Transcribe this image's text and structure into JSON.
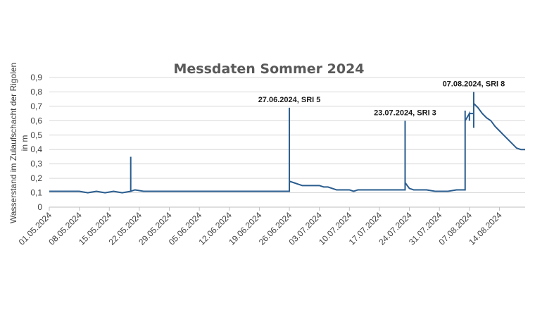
{
  "chart_data": {
    "type": "line",
    "title": "Messdaten Sommer 2024",
    "ylabel_line1": "Wasserstand im Zulaufschacht der Rigolen",
    "ylabel_line2": "in m",
    "ylim": [
      0,
      0.9
    ],
    "yticks": [
      "0",
      "0,1",
      "0,2",
      "0,3",
      "0,4",
      "0,5",
      "0,6",
      "0,7",
      "0,8",
      "0,9"
    ],
    "ytick_values": [
      0,
      0.1,
      0.2,
      0.3,
      0.4,
      0.5,
      0.6,
      0.7,
      0.8,
      0.9
    ],
    "xlim": [
      "2024-05-01",
      "2024-08-20"
    ],
    "xtick_labels": [
      "01.05.2024",
      "08.05.2024",
      "15.05.2024",
      "22.05.2024",
      "29.05.2024",
      "05.06.2024",
      "12.06.2024",
      "19.06.2024",
      "26.06.2024",
      "03.07.2024",
      "10.07.2024",
      "17.07.2024",
      "24.07.2024",
      "31.07.2024",
      "07.08.2024",
      "14.08.2024"
    ],
    "xtick_dates": [
      "2024-05-01",
      "2024-05-08",
      "2024-05-15",
      "2024-05-22",
      "2024-05-29",
      "2024-06-05",
      "2024-06-12",
      "2024-06-19",
      "2024-06-26",
      "2024-07-03",
      "2024-07-10",
      "2024-07-17",
      "2024-07-24",
      "2024-07-31",
      "2024-08-07",
      "2024-08-14"
    ],
    "grid": true,
    "series": [
      {
        "color": "#2a5d8f",
        "x": [
          "2024-05-01",
          "2024-05-08",
          "2024-05-10",
          "2024-05-12",
          "2024-05-14",
          "2024-05-16",
          "2024-05-18",
          "2024-05-20",
          "2024-05-20",
          "2024-05-20",
          "2024-05-20",
          "2024-05-21",
          "2024-05-23",
          "2024-05-25",
          "2024-06-26",
          "2024-06-26",
          "2024-06-26",
          "2024-06-26",
          "2024-06-27",
          "2024-06-28",
          "2024-06-29",
          "2024-06-30",
          "2024-07-03",
          "2024-07-04",
          "2024-07-05",
          "2024-07-06",
          "2024-07-07",
          "2024-07-10",
          "2024-07-11",
          "2024-07-12",
          "2024-07-23",
          "2024-07-23",
          "2024-07-23",
          "2024-07-23",
          "2024-07-24",
          "2024-07-25",
          "2024-07-28",
          "2024-07-30",
          "2024-08-02",
          "2024-08-04",
          "2024-08-06",
          "2024-08-06",
          "2024-08-06",
          "2024-08-06",
          "2024-08-07",
          "2024-08-07",
          "2024-08-07",
          "2024-08-08",
          "2024-08-08",
          "2024-08-08",
          "2024-08-08",
          "2024-08-08",
          "2024-08-09",
          "2024-08-10",
          "2024-08-11",
          "2024-08-12",
          "2024-08-13",
          "2024-08-14",
          "2024-08-15",
          "2024-08-16",
          "2024-08-17",
          "2024-08-18",
          "2024-08-19",
          "2024-08-20"
        ],
        "y": [
          0.11,
          0.11,
          0.1,
          0.11,
          0.1,
          0.11,
          0.1,
          0.11,
          0.35,
          0.11,
          0.11,
          0.12,
          0.11,
          0.11,
          0.11,
          0.69,
          0.18,
          0.18,
          0.17,
          0.16,
          0.15,
          0.15,
          0.15,
          0.14,
          0.14,
          0.13,
          0.12,
          0.12,
          0.11,
          0.12,
          0.12,
          0.6,
          0.17,
          0.17,
          0.13,
          0.12,
          0.12,
          0.11,
          0.11,
          0.12,
          0.12,
          0.67,
          0.6,
          0.6,
          0.65,
          0.6,
          0.65,
          0.65,
          0.8,
          0.55,
          0.72,
          0.72,
          0.69,
          0.65,
          0.62,
          0.6,
          0.56,
          0.53,
          0.5,
          0.47,
          0.44,
          0.41,
          0.4,
          0.4
        ]
      }
    ],
    "annotations": [
      {
        "text": "27.06.2024, SRI 5",
        "x": "2024-06-26",
        "y": 0.69
      },
      {
        "text": "23.07.2024, SRI 3",
        "x": "2024-07-23",
        "y": 0.6
      },
      {
        "text": "07.08.2024, SRI 8",
        "x": "2024-08-08",
        "y": 0.8
      }
    ]
  }
}
